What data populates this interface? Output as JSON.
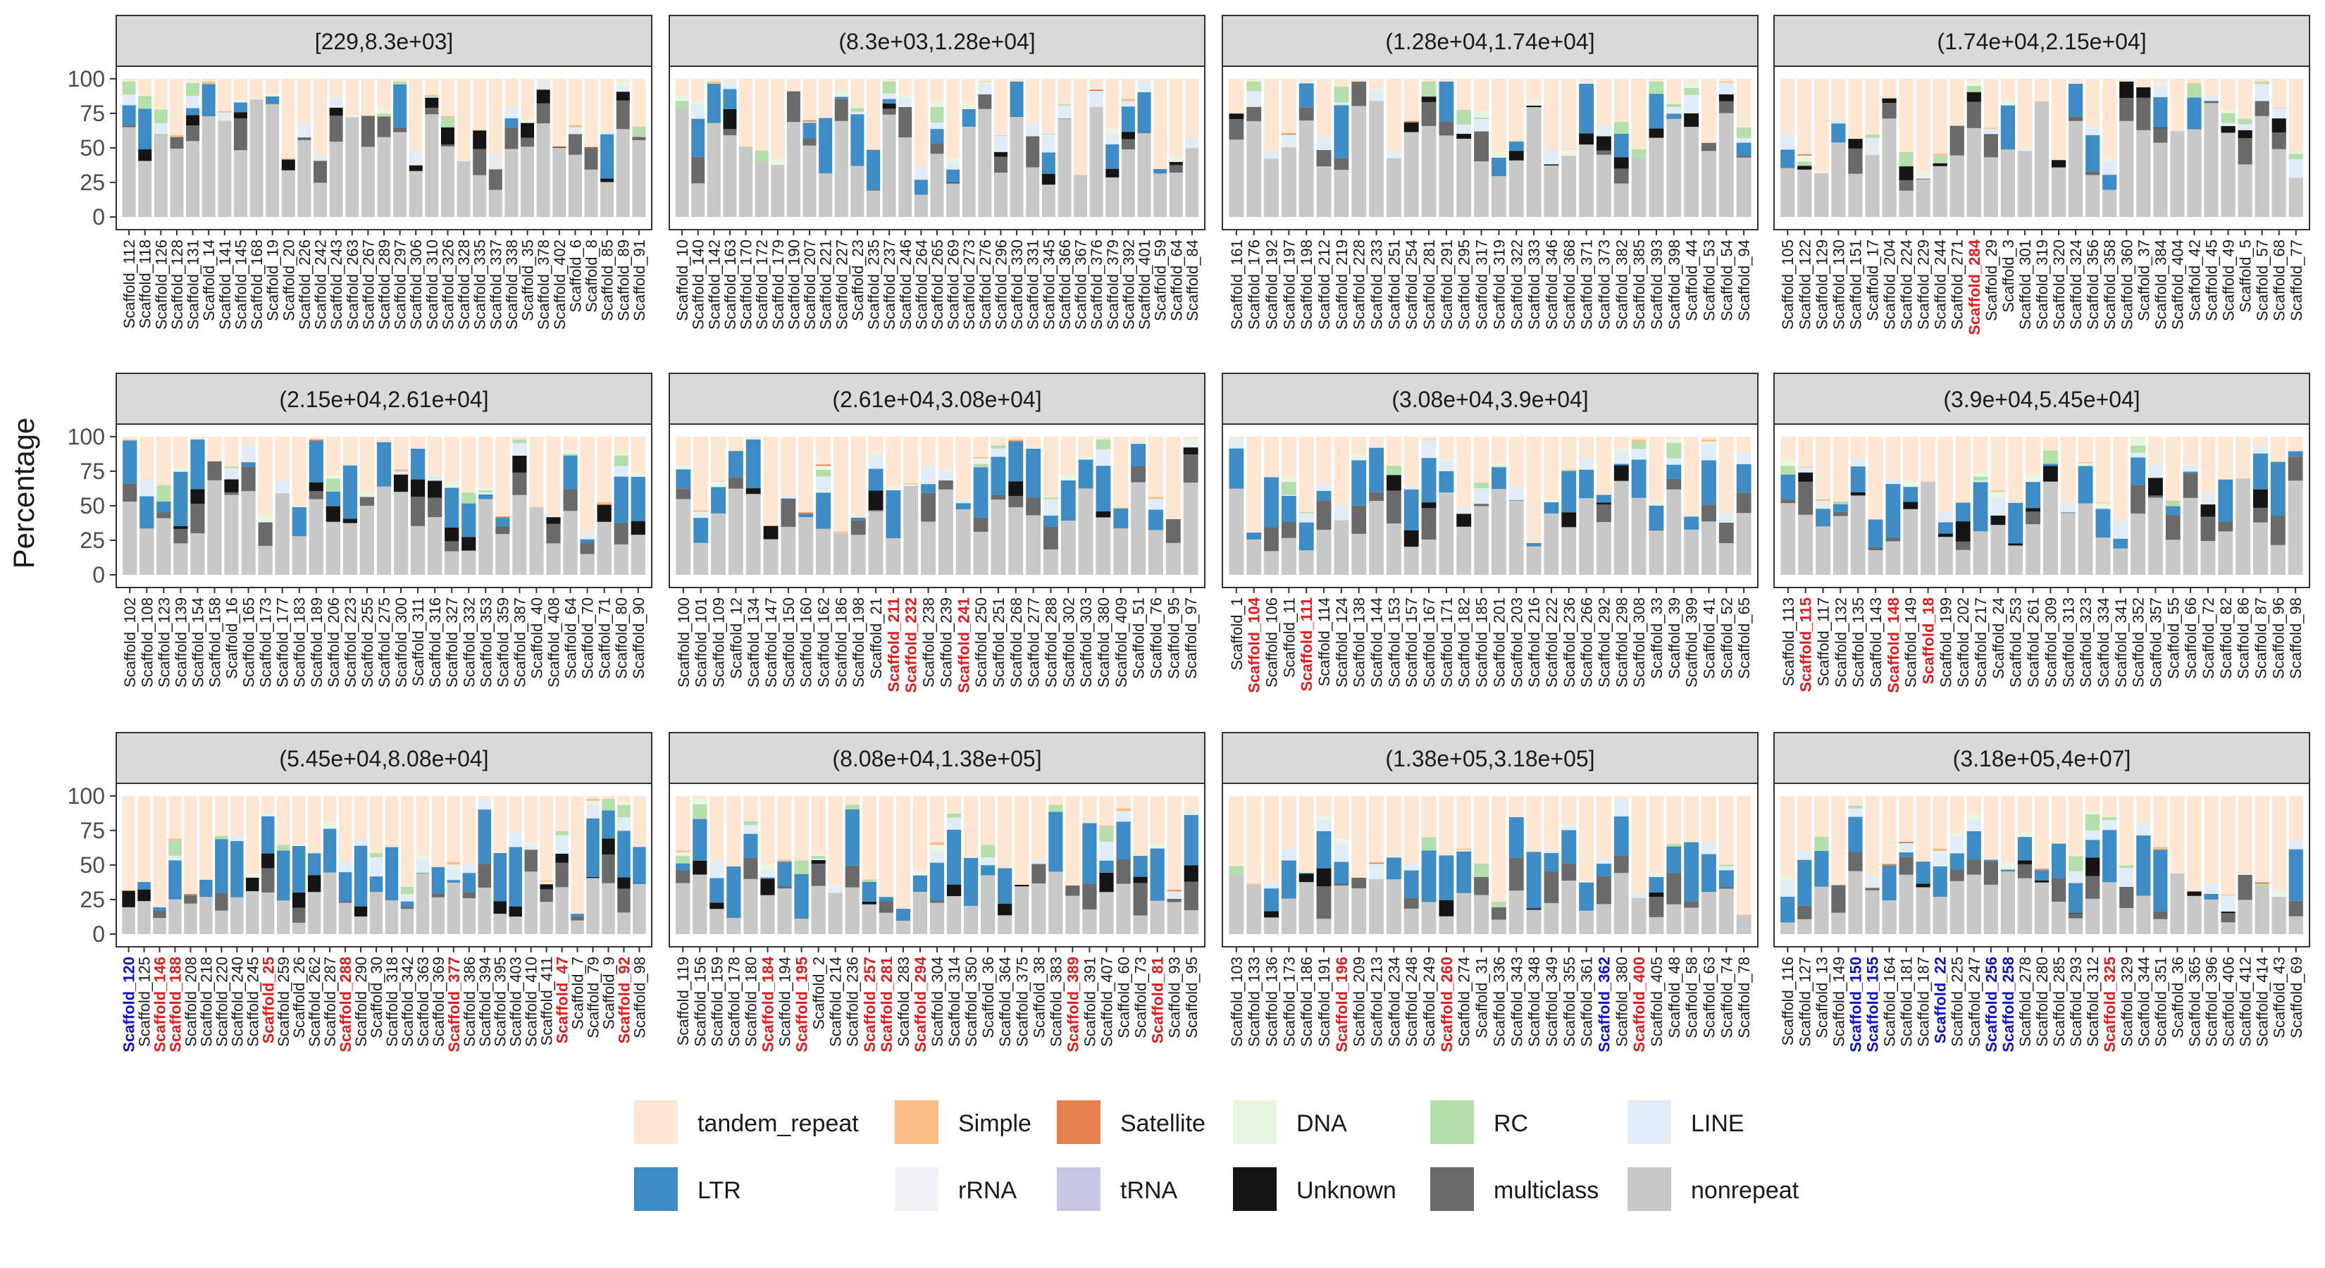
{
  "chart_data": {
    "type": "bar",
    "stacked": true,
    "ylabel": "Percentage",
    "ylim": [
      0,
      100
    ],
    "yticks": [
      0,
      25,
      50,
      75,
      100
    ],
    "facet_layout": "3 rows x 4 columns",
    "legend_placement": "bottom",
    "series_order_bottom_to_top": [
      "nonrepeat",
      "multiclass",
      "Unknown",
      "tRNA",
      "rRNA",
      "LTR",
      "LINE",
      "RC",
      "DNA",
      "Satellite",
      "Simple",
      "tandem_repeat"
    ],
    "legend": [
      {
        "name": "tandem_repeat",
        "color": "#FDE6D2"
      },
      {
        "name": "Simple",
        "color": "#FDBE85"
      },
      {
        "name": "Satellite",
        "color": "#E6804D"
      },
      {
        "name": "DNA",
        "color": "#E8F5E0"
      },
      {
        "name": "RC",
        "color": "#B4DFAB"
      },
      {
        "name": "LINE",
        "color": "#E0EDF7"
      },
      {
        "name": "LTR",
        "color": "#3E8CC6"
      },
      {
        "name": "rRNA",
        "color": "#F0F0F7"
      },
      {
        "name": "tRNA",
        "color": "#C7C8E3"
      },
      {
        "name": "Unknown",
        "color": "#151515"
      },
      {
        "name": "multiclass",
        "color": "#6A6A6A"
      },
      {
        "name": "nonrepeat",
        "color": "#C8C8C8"
      }
    ],
    "label_colors": {
      "normal": "#1A1A1A",
      "red": "#E41A1C",
      "blue": "#1010C8"
    },
    "facets": [
      {
        "title": "[229,8.3e+03]",
        "scaffolds": [
          "Scaffold_112",
          "Scaffold_118",
          "Scaffold_126",
          "Scaffold_128",
          "Scaffold_131",
          "Scaffold_14",
          "Scaffold_141",
          "Scaffold_145",
          "Scaffold_168",
          "Scaffold_19",
          "Scaffold_20",
          "Scaffold_226",
          "Scaffold_242",
          "Scaffold_243",
          "Scaffold_263",
          "Scaffold_267",
          "Scaffold_289",
          "Scaffold_297",
          "Scaffold_306",
          "Scaffold_310",
          "Scaffold_326",
          "Scaffold_328",
          "Scaffold_335",
          "Scaffold_337",
          "Scaffold_338",
          "Scaffold_35",
          "Scaffold_378",
          "Scaffold_402",
          "Scaffold_6",
          "Scaffold_8",
          "Scaffold_85",
          "Scaffold_89",
          "Scaffold_91"
        ],
        "highlight_red": [],
        "highlight_blue": []
      },
      {
        "title": "(8.3e+03,1.28e+04]",
        "scaffolds": [
          "Scaffold_10",
          "Scaffold_140",
          "Scaffold_142",
          "Scaffold_163",
          "Scaffold_170",
          "Scaffold_172",
          "Scaffold_179",
          "Scaffold_190",
          "Scaffold_207",
          "Scaffold_221",
          "Scaffold_227",
          "Scaffold_23",
          "Scaffold_235",
          "Scaffold_237",
          "Scaffold_246",
          "Scaffold_264",
          "Scaffold_265",
          "Scaffold_269",
          "Scaffold_273",
          "Scaffold_276",
          "Scaffold_296",
          "Scaffold_330",
          "Scaffold_331",
          "Scaffold_345",
          "Scaffold_366",
          "Scaffold_367",
          "Scaffold_376",
          "Scaffold_379",
          "Scaffold_392",
          "Scaffold_401",
          "Scaffold_59",
          "Scaffold_64",
          "Scaffold_84"
        ],
        "highlight_red": [],
        "highlight_blue": []
      },
      {
        "title": "(1.28e+04,1.74e+04]",
        "scaffolds": [
          "Scaffold_161",
          "Scaffold_176",
          "Scaffold_192",
          "Scaffold_197",
          "Scaffold_198",
          "Scaffold_212",
          "Scaffold_219",
          "Scaffold_228",
          "Scaffold_233",
          "Scaffold_251",
          "Scaffold_254",
          "Scaffold_281",
          "Scaffold_291",
          "Scaffold_295",
          "Scaffold_317",
          "Scaffold_319",
          "Scaffold_322",
          "Scaffold_333",
          "Scaffold_346",
          "Scaffold_368",
          "Scaffold_371",
          "Scaffold_373",
          "Scaffold_382",
          "Scaffold_385",
          "Scaffold_393",
          "Scaffold_398",
          "Scaffold_44",
          "Scaffold_53",
          "Scaffold_54",
          "Scaffold_94"
        ],
        "highlight_red": [],
        "highlight_blue": []
      },
      {
        "title": "(1.74e+04,2.15e+04]",
        "scaffolds": [
          "Scaffold_105",
          "Scaffold_122",
          "Scaffold_129",
          "Scaffold_130",
          "Scaffold_151",
          "Scaffold_17",
          "Scaffold_204",
          "Scaffold_224",
          "Scaffold_229",
          "Scaffold_244",
          "Scaffold_271",
          "Scaffold_284",
          "Scaffold_29",
          "Scaffold_3",
          "Scaffold_301",
          "Scaffold_319",
          "Scaffold_320",
          "Scaffold_324",
          "Scaffold_356",
          "Scaffold_358",
          "Scaffold_360",
          "Scaffold_37",
          "Scaffold_384",
          "Scaffold_404",
          "Scaffold_42",
          "Scaffold_45",
          "Scaffold_49",
          "Scaffold_5",
          "Scaffold_57",
          "Scaffold_68",
          "Scaffold_77"
        ],
        "highlight_red": [
          "Scaffold_284"
        ],
        "highlight_blue": []
      },
      {
        "title": "(2.15e+04,2.61e+04]",
        "scaffolds": [
          "Scaffold_102",
          "Scaffold_108",
          "Scaffold_123",
          "Scaffold_139",
          "Scaffold_154",
          "Scaffold_158",
          "Scaffold_16",
          "Scaffold_165",
          "Scaffold_173",
          "Scaffold_177",
          "Scaffold_183",
          "Scaffold_189",
          "Scaffold_206",
          "Scaffold_223",
          "Scaffold_255",
          "Scaffold_275",
          "Scaffold_300",
          "Scaffold_311",
          "Scaffold_316",
          "Scaffold_327",
          "Scaffold_332",
          "Scaffold_353",
          "Scaffold_359",
          "Scaffold_387",
          "Scaffold_40",
          "Scaffold_408",
          "Scaffold_64",
          "Scaffold_70",
          "Scaffold_71",
          "Scaffold_80",
          "Scaffold_90"
        ],
        "highlight_red": [],
        "highlight_blue": []
      },
      {
        "title": "(2.61e+04,3.08e+04]",
        "scaffolds": [
          "Scaffold_100",
          "Scaffold_101",
          "Scaffold_109",
          "Scaffold_12",
          "Scaffold_134",
          "Scaffold_147",
          "Scaffold_150",
          "Scaffold_160",
          "Scaffold_162",
          "Scaffold_186",
          "Scaffold_198",
          "Scaffold_21",
          "Scaffold_211",
          "Scaffold_232",
          "Scaffold_238",
          "Scaffold_239",
          "Scaffold_241",
          "Scaffold_250",
          "Scaffold_251",
          "Scaffold_268",
          "Scaffold_277",
          "Scaffold_288",
          "Scaffold_302",
          "Scaffold_303",
          "Scaffold_380",
          "Scaffold_409",
          "Scaffold_51",
          "Scaffold_76",
          "Scaffold_95",
          "Scaffold_97"
        ],
        "highlight_red": [
          "Scaffold_211",
          "Scaffold_232",
          "Scaffold_241"
        ],
        "highlight_blue": []
      },
      {
        "title": "(3.08e+04,3.9e+04]",
        "scaffolds": [
          "Scaffold_1",
          "Scaffold_104",
          "Scaffold_106",
          "Scaffold_11",
          "Scaffold_111",
          "Scaffold_114",
          "Scaffold_124",
          "Scaffold_138",
          "Scaffold_144",
          "Scaffold_153",
          "Scaffold_157",
          "Scaffold_167",
          "Scaffold_171",
          "Scaffold_182",
          "Scaffold_185",
          "Scaffold_201",
          "Scaffold_203",
          "Scaffold_216",
          "Scaffold_222",
          "Scaffold_236",
          "Scaffold_266",
          "Scaffold_292",
          "Scaffold_298",
          "Scaffold_308",
          "Scaffold_33",
          "Scaffold_39",
          "Scaffold_399",
          "Scaffold_41",
          "Scaffold_52",
          "Scaffold_65"
        ],
        "highlight_red": [
          "Scaffold_104",
          "Scaffold_111"
        ],
        "highlight_blue": []
      },
      {
        "title": "(3.9e+04,5.45e+04]",
        "scaffolds": [
          "Scaffold_113",
          "Scaffold_115",
          "Scaffold_117",
          "Scaffold_132",
          "Scaffold_135",
          "Scaffold_143",
          "Scaffold_148",
          "Scaffold_149",
          "Scaffold_18",
          "Scaffold_199",
          "Scaffold_202",
          "Scaffold_217",
          "Scaffold_24",
          "Scaffold_253",
          "Scaffold_261",
          "Scaffold_309",
          "Scaffold_313",
          "Scaffold_323",
          "Scaffold_334",
          "Scaffold_341",
          "Scaffold_352",
          "Scaffold_357",
          "Scaffold_55",
          "Scaffold_66",
          "Scaffold_72",
          "Scaffold_82",
          "Scaffold_86",
          "Scaffold_87",
          "Scaffold_96",
          "Scaffold_98"
        ],
        "highlight_red": [
          "Scaffold_115",
          "Scaffold_148",
          "Scaffold_18"
        ],
        "highlight_blue": []
      },
      {
        "title": "(5.45e+04,8.08e+04]",
        "scaffolds": [
          "Scaffold_120",
          "Scaffold_125",
          "Scaffold_146",
          "Scaffold_188",
          "Scaffold_208",
          "Scaffold_218",
          "Scaffold_220",
          "Scaffold_240",
          "Scaffold_245",
          "Scaffold_25",
          "Scaffold_259",
          "Scaffold_26",
          "Scaffold_262",
          "Scaffold_287",
          "Scaffold_288",
          "Scaffold_290",
          "Scaffold_30",
          "Scaffold_318",
          "Scaffold_342",
          "Scaffold_363",
          "Scaffold_369",
          "Scaffold_377",
          "Scaffold_386",
          "Scaffold_394",
          "Scaffold_395",
          "Scaffold_403",
          "Scaffold_410",
          "Scaffold_411",
          "Scaffold_47",
          "Scaffold_7",
          "Scaffold_79",
          "Scaffold_9",
          "Scaffold_92",
          "Scaffold_98"
        ],
        "highlight_red": [
          "Scaffold_146",
          "Scaffold_188",
          "Scaffold_25",
          "Scaffold_288",
          "Scaffold_377",
          "Scaffold_47",
          "Scaffold_92"
        ],
        "highlight_blue": [
          "Scaffold_120"
        ]
      },
      {
        "title": "(8.08e+04,1.38e+05]",
        "scaffolds": [
          "Scaffold_119",
          "Scaffold_156",
          "Scaffold_159",
          "Scaffold_178",
          "Scaffold_180",
          "Scaffold_184",
          "Scaffold_194",
          "Scaffold_195",
          "Scaffold_2",
          "Scaffold_214",
          "Scaffold_236",
          "Scaffold_257",
          "Scaffold_281",
          "Scaffold_283",
          "Scaffold_294",
          "Scaffold_304",
          "Scaffold_314",
          "Scaffold_350",
          "Scaffold_36",
          "Scaffold_364",
          "Scaffold_375",
          "Scaffold_38",
          "Scaffold_383",
          "Scaffold_389",
          "Scaffold_391",
          "Scaffold_407",
          "Scaffold_60",
          "Scaffold_73",
          "Scaffold_81",
          "Scaffold_93",
          "Scaffold_95"
        ],
        "highlight_red": [
          "Scaffold_184",
          "Scaffold_195",
          "Scaffold_257",
          "Scaffold_281",
          "Scaffold_294",
          "Scaffold_389",
          "Scaffold_81"
        ],
        "highlight_blue": []
      },
      {
        "title": "(1.38e+05,3.18e+05]",
        "scaffolds": [
          "Scaffold_103",
          "Scaffold_133",
          "Scaffold_136",
          "Scaffold_173",
          "Scaffold_186",
          "Scaffold_191",
          "Scaffold_196",
          "Scaffold_209",
          "Scaffold_213",
          "Scaffold_234",
          "Scaffold_248",
          "Scaffold_249",
          "Scaffold_260",
          "Scaffold_274",
          "Scaffold_31",
          "Scaffold_336",
          "Scaffold_343",
          "Scaffold_348",
          "Scaffold_349",
          "Scaffold_355",
          "Scaffold_361",
          "Scaffold_362",
          "Scaffold_380",
          "Scaffold_400",
          "Scaffold_405",
          "Scaffold_48",
          "Scaffold_58",
          "Scaffold_63",
          "Scaffold_74",
          "Scaffold_78"
        ],
        "highlight_red": [
          "Scaffold_196",
          "Scaffold_260",
          "Scaffold_400"
        ],
        "highlight_blue": [
          "Scaffold_362"
        ]
      },
      {
        "title": "(3.18e+05,4e+07]",
        "scaffolds": [
          "Scaffold_116",
          "Scaffold_127",
          "Scaffold_13",
          "Scaffold_149",
          "Scaffold_150",
          "Scaffold_155",
          "Scaffold_164",
          "Scaffold_181",
          "Scaffold_187",
          "Scaffold_22",
          "Scaffold_225",
          "Scaffold_247",
          "Scaffold_256",
          "Scaffold_258",
          "Scaffold_278",
          "Scaffold_280",
          "Scaffold_285",
          "Scaffold_293",
          "Scaffold_312",
          "Scaffold_325",
          "Scaffold_329",
          "Scaffold_344",
          "Scaffold_351",
          "Scaffold_36",
          "Scaffold_365",
          "Scaffold_396",
          "Scaffold_406",
          "Scaffold_412",
          "Scaffold_414",
          "Scaffold_43",
          "Scaffold_69"
        ],
        "highlight_red": [
          "Scaffold_325"
        ],
        "highlight_blue": [
          "Scaffold_150",
          "Scaffold_155",
          "Scaffold_22",
          "Scaffold_256",
          "Scaffold_258"
        ]
      }
    ]
  }
}
